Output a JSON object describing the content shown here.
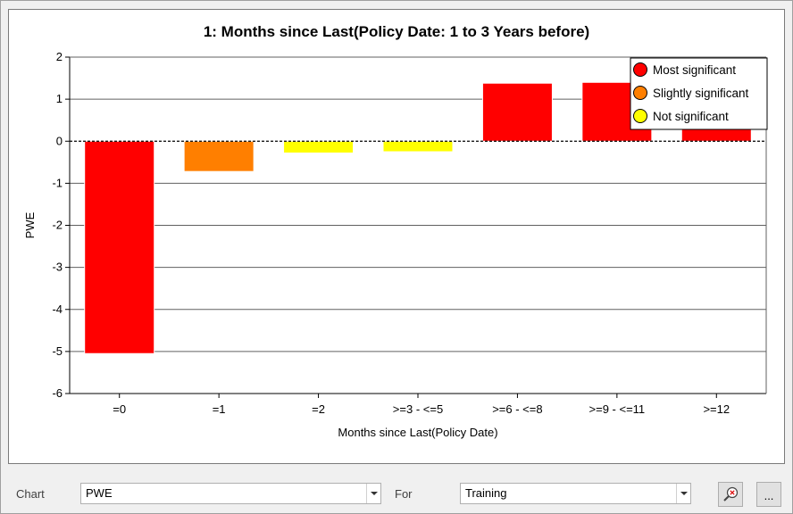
{
  "chart_data": {
    "type": "bar",
    "title": "1: Months since Last(Policy Date: 1 to 3 Years before)",
    "xlabel": "Months since Last(Policy Date)",
    "ylabel": "PWE",
    "ylim": [
      -6,
      2
    ],
    "yticks": [
      "2",
      "1",
      "0",
      "-1",
      "-2",
      "-3",
      "-4",
      "-5",
      "-6"
    ],
    "categories": [
      "=0",
      "=1",
      "=2",
      ">=3 - <=5",
      ">=6 - <=8",
      ">=9 - <=11",
      ">=12"
    ],
    "values": [
      -5.05,
      -0.72,
      -0.28,
      -0.25,
      1.38,
      1.4,
      0.5
    ],
    "significance": [
      "Most significant",
      "Slightly significant",
      "Not significant",
      "Not significant",
      "Most significant",
      "Most significant",
      "Most significant"
    ],
    "legend": [
      {
        "label": "Most significant",
        "color": "#ff0000"
      },
      {
        "label": "Slightly significant",
        "color": "#ff7f00"
      },
      {
        "label": "Not significant",
        "color": "#ffff00"
      }
    ],
    "legend_position": "top-right",
    "grid": true
  },
  "controls": {
    "chart_label": "Chart",
    "chart_value": "PWE",
    "for_label": "For",
    "for_value": "Training",
    "zoom_icon": "zoom-reset-icon",
    "more_label": "..."
  }
}
